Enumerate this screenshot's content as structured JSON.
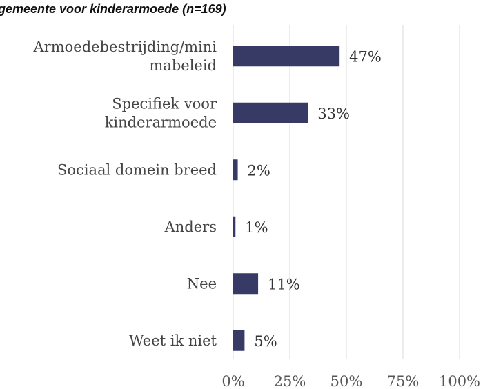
{
  "chart_data": {
    "type": "bar",
    "orientation": "horizontal",
    "title": "gemeente voor kinderarmoede (n=169)",
    "categories": [
      [
        "Armoedebestrijding/mini",
        "mabeleid"
      ],
      [
        "Specifiek voor",
        "kinderarmoede"
      ],
      [
        "Sociaal domein breed"
      ],
      [
        "Anders"
      ],
      [
        "Nee"
      ],
      [
        "Weet ik niet"
      ]
    ],
    "values": [
      47,
      33,
      2,
      1,
      11,
      5
    ],
    "value_labels": [
      "47%",
      "33%",
      "2%",
      "1%",
      "11%",
      "5%"
    ],
    "xlim": [
      0,
      100
    ],
    "xticks": [
      0,
      25,
      50,
      75,
      100
    ],
    "xtick_labels": [
      "0%",
      "25%",
      "50%",
      "75%",
      "100%"
    ],
    "bar_color": "#363a65",
    "grid": true
  }
}
